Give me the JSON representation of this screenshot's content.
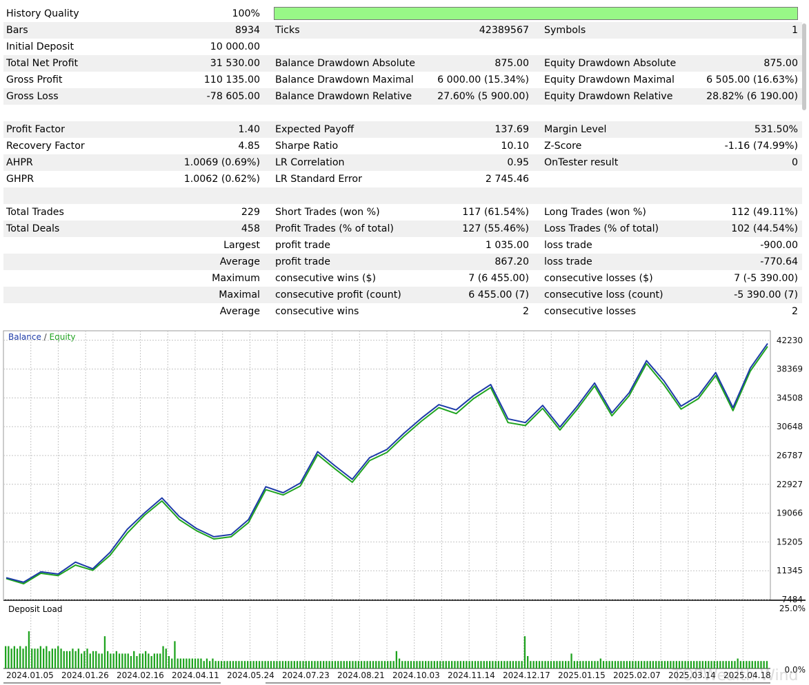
{
  "stats": {
    "rows": [
      {
        "c1": [
          "History Quality",
          "100%"
        ],
        "c2": [
          "",
          ""
        ],
        "c3": [
          "",
          ""
        ],
        "shade": false
      },
      {
        "c1": [
          "Bars",
          "8934"
        ],
        "c2": [
          "Ticks",
          "42389567"
        ],
        "c3": [
          "Symbols",
          "1"
        ],
        "shade": true
      },
      {
        "c1": [
          "Initial Deposit",
          "10 000.00"
        ],
        "c2": [
          "",
          ""
        ],
        "c3": [
          "",
          ""
        ],
        "shade": false
      },
      {
        "c1": [
          "Total Net Profit",
          "31 530.00"
        ],
        "c2": [
          "Balance Drawdown Absolute",
          "875.00"
        ],
        "c3": [
          "Equity Drawdown Absolute",
          "875.00"
        ],
        "shade": true
      },
      {
        "c1": [
          "Gross Profit",
          "110 135.00"
        ],
        "c2": [
          "Balance Drawdown Maximal",
          "6 000.00 (15.34%)"
        ],
        "c3": [
          "Equity Drawdown Maximal",
          "6 505.00 (16.63%)"
        ],
        "shade": false
      },
      {
        "c1": [
          "Gross Loss",
          "-78 605.00"
        ],
        "c2": [
          "Balance Drawdown Relative",
          "27.60% (5 900.00)"
        ],
        "c3": [
          "Equity Drawdown Relative",
          "28.82% (6 190.00)"
        ],
        "shade": true
      },
      {
        "c1": [
          "",
          ""
        ],
        "c2": [
          "",
          ""
        ],
        "c3": [
          "",
          ""
        ],
        "shade": false
      },
      {
        "c1": [
          "Profit Factor",
          "1.40"
        ],
        "c2": [
          "Expected Payoff",
          "137.69"
        ],
        "c3": [
          "Margin Level",
          "531.50%"
        ],
        "shade": true
      },
      {
        "c1": [
          "Recovery Factor",
          "4.85"
        ],
        "c2": [
          "Sharpe Ratio",
          "10.10"
        ],
        "c3": [
          "Z-Score",
          "-1.16 (74.99%)"
        ],
        "shade": false
      },
      {
        "c1": [
          "AHPR",
          "1.0069 (0.69%)"
        ],
        "c2": [
          "LR Correlation",
          "0.95"
        ],
        "c3": [
          "OnTester result",
          "0"
        ],
        "shade": true
      },
      {
        "c1": [
          "GHPR",
          "1.0062 (0.62%)"
        ],
        "c2": [
          "LR Standard Error",
          "2 745.46"
        ],
        "c3": [
          "",
          ""
        ],
        "shade": false
      },
      {
        "c1": [
          "",
          ""
        ],
        "c2": [
          "",
          ""
        ],
        "c3": [
          "",
          ""
        ],
        "shade": true
      },
      {
        "c1": [
          "Total Trades",
          "229"
        ],
        "c2": [
          "Short Trades (won %)",
          "117 (61.54%)"
        ],
        "c3": [
          "Long Trades (won %)",
          "112 (49.11%)"
        ],
        "shade": false
      },
      {
        "c1": [
          "Total Deals",
          "458"
        ],
        "c2": [
          "Profit Trades (% of total)",
          "127 (55.46%)"
        ],
        "c3": [
          "Loss Trades (% of total)",
          "102 (44.54%)"
        ],
        "shade": true
      },
      {
        "c1": [
          "",
          "Largest"
        ],
        "c2": [
          "profit trade",
          "1 035.00"
        ],
        "c3": [
          "loss trade",
          "-900.00"
        ],
        "shade": false
      },
      {
        "c1": [
          "",
          "Average"
        ],
        "c2": [
          "profit trade",
          "867.20"
        ],
        "c3": [
          "loss trade",
          "-770.64"
        ],
        "shade": true
      },
      {
        "c1": [
          "",
          "Maximum"
        ],
        "c2": [
          "consecutive wins ($)",
          "7 (6 455.00)"
        ],
        "c3": [
          "consecutive losses ($)",
          "7 (-5 390.00)"
        ],
        "shade": false
      },
      {
        "c1": [
          "",
          "Maximal"
        ],
        "c2": [
          "consecutive profit (count)",
          "6 455.00 (7)"
        ],
        "c3": [
          "consecutive loss (count)",
          "-5 390.00 (7)"
        ],
        "shade": true
      },
      {
        "c1": [
          "",
          "Average"
        ],
        "c2": [
          "consecutive wins",
          "2"
        ],
        "c3": [
          "consecutive losses",
          "2"
        ],
        "shade": false
      }
    ],
    "history_quality_fill": 1.0
  },
  "chart": {
    "legend_balance": "Balance",
    "legend_sep": " / ",
    "legend_equity": "Equity",
    "deposit_load_title": "Deposit Load",
    "colors": {
      "balance": "#1c3aa8",
      "equity": "#1fa31f",
      "grid": "#c4c4c4",
      "load": "#1fa31f"
    },
    "watermark": "TOPWealth Wind"
  },
  "chart_data": {
    "type": "line",
    "title": "",
    "series": [
      {
        "name": "Balance",
        "values": [
          10400,
          9800,
          11200,
          10900,
          12500,
          11600,
          13800,
          16900,
          19100,
          21100,
          18600,
          17000,
          15900,
          16200,
          18200,
          22600,
          21800,
          23100,
          27300,
          25400,
          23600,
          26500,
          27600,
          29800,
          31800,
          33600,
          32900,
          34800,
          36300,
          31700,
          31200,
          33500,
          30600,
          33400,
          36500,
          32500,
          35200,
          39500,
          36800,
          33400,
          34800,
          37900,
          33200,
          38500,
          41800
        ]
      },
      {
        "name": "Equity",
        "values": [
          10300,
          9600,
          11000,
          10700,
          12100,
          11400,
          13400,
          16400,
          18800,
          20700,
          18200,
          16700,
          15600,
          15900,
          17800,
          22200,
          21500,
          22700,
          26900,
          25000,
          23200,
          26100,
          27200,
          29400,
          31400,
          33200,
          32400,
          34400,
          35900,
          31200,
          30800,
          33100,
          30200,
          33000,
          36100,
          32100,
          34800,
          39100,
          36300,
          33000,
          34400,
          37500,
          32800,
          38100,
          41400
        ]
      }
    ],
    "ylim": [
      7484,
      43500
    ],
    "yticks": [
      "42230",
      "38369",
      "34508",
      "30648",
      "26787",
      "22927",
      "19066",
      "15205",
      "11345",
      "7484"
    ],
    "xticks": [
      "2024.01.05",
      "2024.01.26",
      "2024.02.16",
      "2024.04.11",
      "2024.05.24",
      "2024.07.23",
      "2024.08.21",
      "2024.10.03",
      "2024.11.14",
      "2024.12.17",
      "2025.01.15",
      "2025.02.07",
      "2025.03.14",
      "2025.04.18"
    ],
    "deposit_load": {
      "ylim_labels": [
        "25.0%",
        "0.0%"
      ],
      "max_percent": 25.0,
      "values": [
        9,
        9,
        8,
        9,
        8,
        9,
        8,
        9,
        15,
        8,
        8,
        8,
        9,
        8,
        9,
        7,
        8,
        8,
        9,
        8,
        7,
        7,
        7,
        8,
        7,
        8,
        6,
        7,
        8,
        6,
        7,
        7,
        6,
        6,
        13,
        7,
        6,
        6,
        7,
        6,
        6,
        6,
        6,
        5,
        7,
        5,
        6,
        6,
        7,
        6,
        5,
        6,
        6,
        6,
        9,
        8,
        5,
        4,
        11,
        4,
        4,
        4,
        4,
        4,
        4,
        4,
        4,
        4,
        3,
        4,
        3,
        4,
        3,
        3,
        3,
        3,
        3,
        3,
        3,
        3,
        3,
        3,
        3,
        3,
        3,
        3,
        3,
        3,
        3,
        3,
        3,
        3,
        3,
        3,
        3,
        3,
        3,
        3,
        3,
        3,
        3,
        3,
        3,
        3,
        3,
        3,
        3,
        3,
        3,
        3,
        3,
        3,
        3,
        3,
        3,
        3,
        3,
        3,
        3,
        3,
        3,
        3,
        3,
        3,
        3,
        3,
        3,
        3,
        3,
        3,
        3,
        3,
        3,
        3,
        7,
        4,
        3,
        3,
        3,
        3,
        3,
        3,
        3,
        3,
        3,
        3,
        3,
        3,
        3,
        3,
        3,
        3,
        3,
        3,
        3,
        3,
        3,
        3,
        3,
        3,
        3,
        3,
        3,
        3,
        3,
        3,
        3,
        3,
        3,
        3,
        3,
        3,
        3,
        3,
        3,
        3,
        3,
        3,
        13,
        5,
        3,
        3,
        3,
        3,
        3,
        3,
        3,
        3,
        3,
        3,
        3,
        3,
        3,
        3,
        6,
        3,
        3,
        3,
        3,
        3,
        3,
        3,
        3,
        3,
        4,
        3,
        3,
        3,
        3,
        3,
        3,
        3,
        3,
        3,
        3,
        3,
        3,
        3,
        3,
        3,
        3,
        3,
        3,
        3,
        3,
        3,
        3,
        3,
        3,
        3,
        3,
        3,
        3,
        3,
        3,
        3,
        3,
        3,
        3,
        3,
        3,
        3,
        3,
        3,
        3,
        3,
        3,
        3,
        3,
        3,
        3,
        4,
        3,
        3,
        3,
        3,
        3,
        3,
        3,
        3,
        3,
        3
      ]
    }
  }
}
